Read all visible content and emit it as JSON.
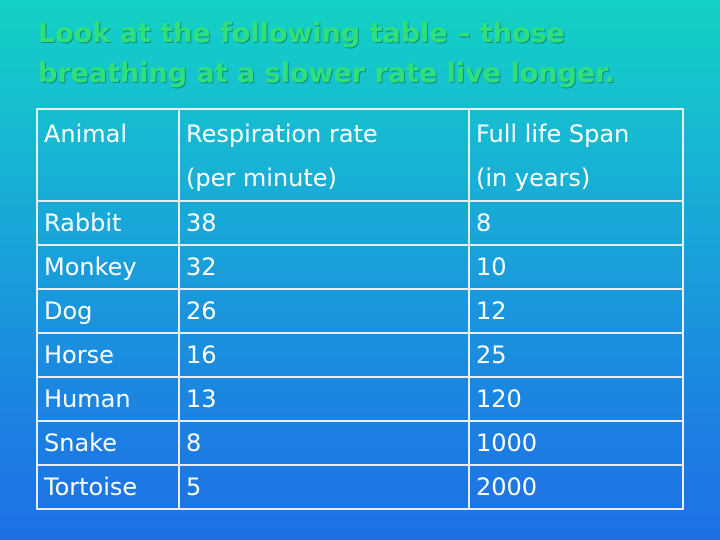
{
  "title": {
    "line1": "Look at the following table – those",
    "line2": "breathing at a slower rate live longer."
  },
  "table": {
    "headers": [
      {
        "line1": "Animal",
        "line2": ""
      },
      {
        "line1": "Respiration rate",
        "line2": "(per minute)"
      },
      {
        "line1": "Full life Span",
        "line2": "(in years)"
      }
    ],
    "rows": [
      {
        "animal": "Rabbit",
        "rate": "38",
        "lifespan": "8"
      },
      {
        "animal": "Monkey",
        "rate": "32",
        "lifespan": "10"
      },
      {
        "animal": "Dog",
        "rate": "26",
        "lifespan": "12"
      },
      {
        "animal": "Horse",
        "rate": "16",
        "lifespan": "25"
      },
      {
        "animal": "Human",
        "rate": "13",
        "lifespan": "120"
      },
      {
        "animal": "Snake",
        "rate": "8",
        "lifespan": "1000"
      },
      {
        "animal": "Tortoise",
        "rate": "5",
        "lifespan": "2000"
      }
    ]
  },
  "colors": {
    "title": "#2fe07a",
    "text": "#ffffff",
    "border": "#e8eef4",
    "background_top": "#13d2c4",
    "background_bottom": "#1e70e4"
  }
}
